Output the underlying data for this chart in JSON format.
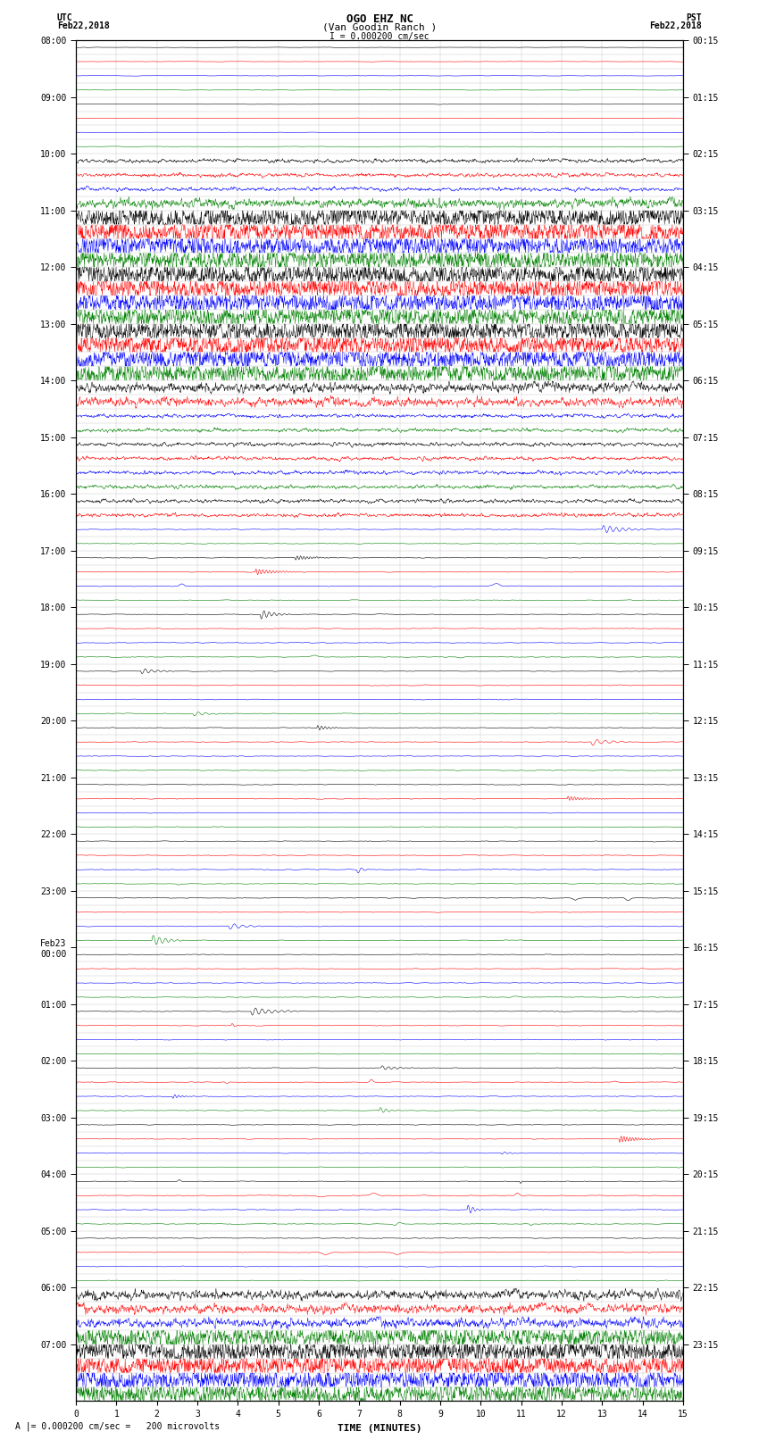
{
  "title_line1": "OGO EHZ NC",
  "title_line2": "(Van Goodin Ranch )",
  "title_line3": "I = 0.000200 cm/sec",
  "left_label_top": "UTC",
  "left_label_date": "Feb22,2018",
  "right_label_top": "PST",
  "right_label_date": "Feb22,2018",
  "xlabel": "TIME (MINUTES)",
  "bottom_note": "A |= 0.000200 cm/sec =   200 microvolts",
  "utc_times_labels": [
    "08:00",
    "09:00",
    "10:00",
    "11:00",
    "12:00",
    "13:00",
    "14:00",
    "15:00",
    "16:00",
    "17:00",
    "18:00",
    "19:00",
    "20:00",
    "21:00",
    "22:00",
    "23:00",
    "Feb23\n00:00",
    "01:00",
    "02:00",
    "03:00",
    "04:00",
    "05:00",
    "06:00",
    "07:00"
  ],
  "utc_times_rows": [
    0,
    4,
    8,
    12,
    16,
    20,
    24,
    28,
    32,
    36,
    40,
    44,
    48,
    52,
    56,
    60,
    64,
    68,
    72,
    76,
    80,
    84,
    88,
    92
  ],
  "pst_times_labels": [
    "00:15",
    "01:15",
    "02:15",
    "03:15",
    "04:15",
    "05:15",
    "06:15",
    "07:15",
    "08:15",
    "09:15",
    "10:15",
    "11:15",
    "12:15",
    "13:15",
    "14:15",
    "15:15",
    "16:15",
    "17:15",
    "18:15",
    "19:15",
    "20:15",
    "21:15",
    "22:15",
    "23:15"
  ],
  "pst_times_rows": [
    0,
    4,
    8,
    12,
    16,
    20,
    24,
    28,
    32,
    36,
    40,
    44,
    48,
    52,
    56,
    60,
    64,
    68,
    72,
    76,
    80,
    84,
    88,
    92
  ],
  "n_rows": 96,
  "n_minutes": 15,
  "colors_cycle": [
    "black",
    "red",
    "blue",
    "green"
  ],
  "xmin": 0,
  "xmax": 15,
  "background_color": "white",
  "grid_color": "#999999",
  "font_size_title": 9,
  "font_size_labels": 7,
  "font_size_axis": 7,
  "row_intensities": {
    "very_busy_rows": [
      12,
      13,
      14,
      15,
      16,
      17,
      18,
      19,
      20,
      21,
      22,
      23,
      91,
      92,
      93,
      94,
      95
    ],
    "busy_rows": [
      11,
      24,
      25,
      88,
      89,
      90
    ],
    "medium_rows": [
      8,
      9,
      10,
      26,
      27,
      28,
      29,
      30,
      31,
      32,
      33
    ],
    "sparse_event_rows": [
      34,
      35,
      36,
      37,
      38,
      39,
      40,
      41,
      42,
      43,
      44,
      45,
      46,
      47,
      48,
      49,
      50,
      51,
      52,
      53,
      54,
      55,
      56,
      57,
      58,
      59,
      60,
      61,
      62,
      63,
      64,
      65,
      66,
      67,
      68,
      69,
      70,
      71,
      72,
      73,
      74,
      75,
      76,
      77,
      78,
      79,
      80,
      81,
      82,
      83,
      84,
      85,
      86,
      87
    ]
  }
}
